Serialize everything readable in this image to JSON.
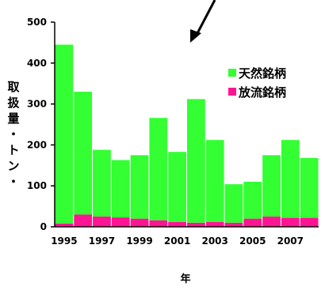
{
  "chart_data": {
    "type": "bar",
    "stacked": true,
    "years": [
      1995,
      1996,
      1997,
      1998,
      1999,
      2000,
      2001,
      2002,
      2003,
      2004,
      2005,
      2006,
      2007,
      2008
    ],
    "xtick_labels": [
      "1995",
      "1997",
      "1999",
      "2001",
      "2003",
      "2005",
      "2007"
    ],
    "xlabel": "年",
    "ylabel": "取扱量・トン・",
    "ylim": [
      0,
      500
    ],
    "yticks": [
      0,
      100,
      200,
      300,
      400,
      500
    ],
    "series": [
      {
        "name": "放流銘柄",
        "color": "#ff1493",
        "values": [
          8,
          30,
          25,
          23,
          20,
          16,
          12,
          10,
          12,
          10,
          20,
          25,
          22,
          22
        ]
      },
      {
        "name": "天然銘柄",
        "color": "#33ff33",
        "values": [
          437,
          300,
          163,
          140,
          155,
          250,
          171,
          302,
          200,
          94,
          90,
          150,
          190,
          146
        ]
      }
    ],
    "legend_position": "top-right",
    "grid": false,
    "annotation": "arrow pointing down-left above 2001"
  }
}
